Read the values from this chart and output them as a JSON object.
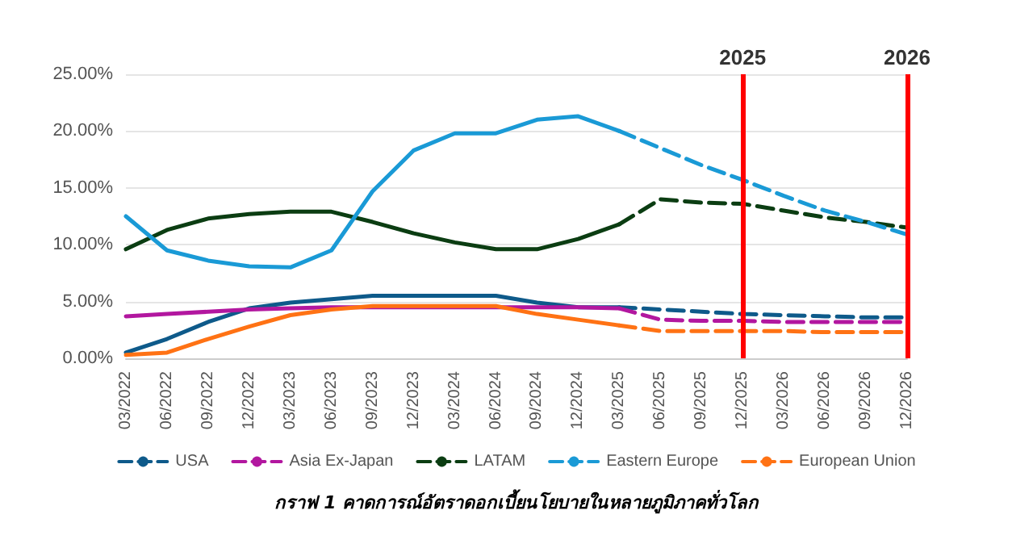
{
  "chart_data": {
    "type": "line",
    "annotations": [
      "กราฟ 1 คาดการณ์อัตราดอกเบี้ยนโยบายในหลายภูมิภาคทั่วโลก"
    ],
    "categories": [
      "03/2022",
      "06/2022",
      "09/2022",
      "12/2022",
      "03/2023",
      "06/2023",
      "09/2023",
      "12/2023",
      "03/2024",
      "06/2024",
      "09/2024",
      "12/2024",
      "03/2025",
      "06/2025",
      "09/2025",
      "12/2025",
      "03/2026",
      "06/2026",
      "09/2026",
      "12/2026"
    ],
    "series": [
      {
        "color": "#0e5a8a",
        "line_style": "solid",
        "values": [
          0.5,
          1.7,
          3.2,
          4.4,
          4.9,
          5.2,
          5.5,
          5.5,
          5.5,
          5.5,
          4.9,
          4.5,
          4.5,
          null,
          null,
          null,
          null,
          null,
          null,
          null
        ]
      },
      {
        "name": "USA",
        "color": "#0e5a8a",
        "line_style": "dashed",
        "values": [
          null,
          null,
          null,
          null,
          null,
          null,
          null,
          null,
          null,
          null,
          null,
          null,
          4.5,
          4.3,
          4.1,
          3.9,
          3.8,
          3.7,
          3.6,
          3.6
        ]
      },
      {
        "color": "#b2179f",
        "line_style": "solid",
        "values": [
          3.7,
          3.9,
          4.1,
          4.3,
          4.4,
          4.5,
          4.5,
          4.5,
          4.5,
          4.5,
          4.5,
          4.5,
          4.4,
          null,
          null,
          null,
          null,
          null,
          null,
          null
        ]
      },
      {
        "name": "Asia Ex-Japan",
        "color": "#b2179f",
        "line_style": "dashed",
        "values": [
          null,
          null,
          null,
          null,
          null,
          null,
          null,
          null,
          null,
          null,
          null,
          null,
          4.4,
          3.4,
          3.3,
          3.3,
          3.2,
          3.2,
          3.2,
          3.2
        ]
      },
      {
        "color": "#0b3d12",
        "line_style": "solid",
        "values": [
          9.6,
          11.3,
          12.3,
          12.7,
          12.9,
          12.9,
          12.0,
          11.0,
          10.2,
          9.6,
          9.6,
          10.5,
          11.8,
          null,
          null,
          null,
          null,
          null,
          null,
          null
        ]
      },
      {
        "name": "LATAM",
        "color": "#0b3d12",
        "line_style": "dashed",
        "values": [
          null,
          null,
          null,
          null,
          null,
          null,
          null,
          null,
          null,
          null,
          null,
          null,
          11.8,
          14.0,
          13.7,
          13.6,
          13.0,
          12.4,
          12.0,
          11.5
        ]
      },
      {
        "color": "#1a9ad6",
        "line_style": "solid",
        "values": [
          12.5,
          9.5,
          8.6,
          8.1,
          8.0,
          9.5,
          14.7,
          18.3,
          19.8,
          19.8,
          21.0,
          21.3,
          20.0,
          null,
          null,
          null,
          null,
          null,
          null,
          null
        ]
      },
      {
        "name": "Eastern Europe",
        "color": "#1a9ad6",
        "line_style": "dashed",
        "values": [
          null,
          null,
          null,
          null,
          null,
          null,
          null,
          null,
          null,
          null,
          null,
          null,
          20.0,
          18.5,
          17.0,
          15.7,
          14.3,
          13.0,
          12.0,
          10.9
        ]
      },
      {
        "color": "#ff7214",
        "line_style": "solid",
        "values": [
          0.3,
          0.5,
          1.7,
          2.8,
          3.8,
          4.3,
          4.6,
          4.6,
          4.6,
          4.6,
          3.9,
          3.4,
          2.9,
          null,
          null,
          null,
          null,
          null,
          null,
          null
        ]
      },
      {
        "name": "European Union",
        "color": "#ff7214",
        "line_style": "dashed",
        "values": [
          null,
          null,
          null,
          null,
          null,
          null,
          null,
          null,
          null,
          null,
          null,
          null,
          2.9,
          2.4,
          2.4,
          2.4,
          2.4,
          2.3,
          2.3,
          2.3
        ]
      }
    ],
    "ylim": [
      0,
      25
    ],
    "yticks": [
      {
        "value": 0,
        "label": "0.00%"
      },
      {
        "value": 5,
        "label": "5.00%"
      },
      {
        "value": 10,
        "label": "10.00%"
      },
      {
        "value": 15,
        "label": "15.00%"
      },
      {
        "value": 20,
        "label": "20.00%"
      },
      {
        "value": 25,
        "label": "25.00%"
      }
    ],
    "ref_lines": [
      {
        "axis": "x",
        "value": "12/2025",
        "label": "2025",
        "color": "#ff0000"
      },
      {
        "axis": "x",
        "value": "12/2026",
        "label": "2026",
        "color": "#ff0000"
      }
    ],
    "grid": "y",
    "legend": "bottom",
    "marker": "none"
  }
}
